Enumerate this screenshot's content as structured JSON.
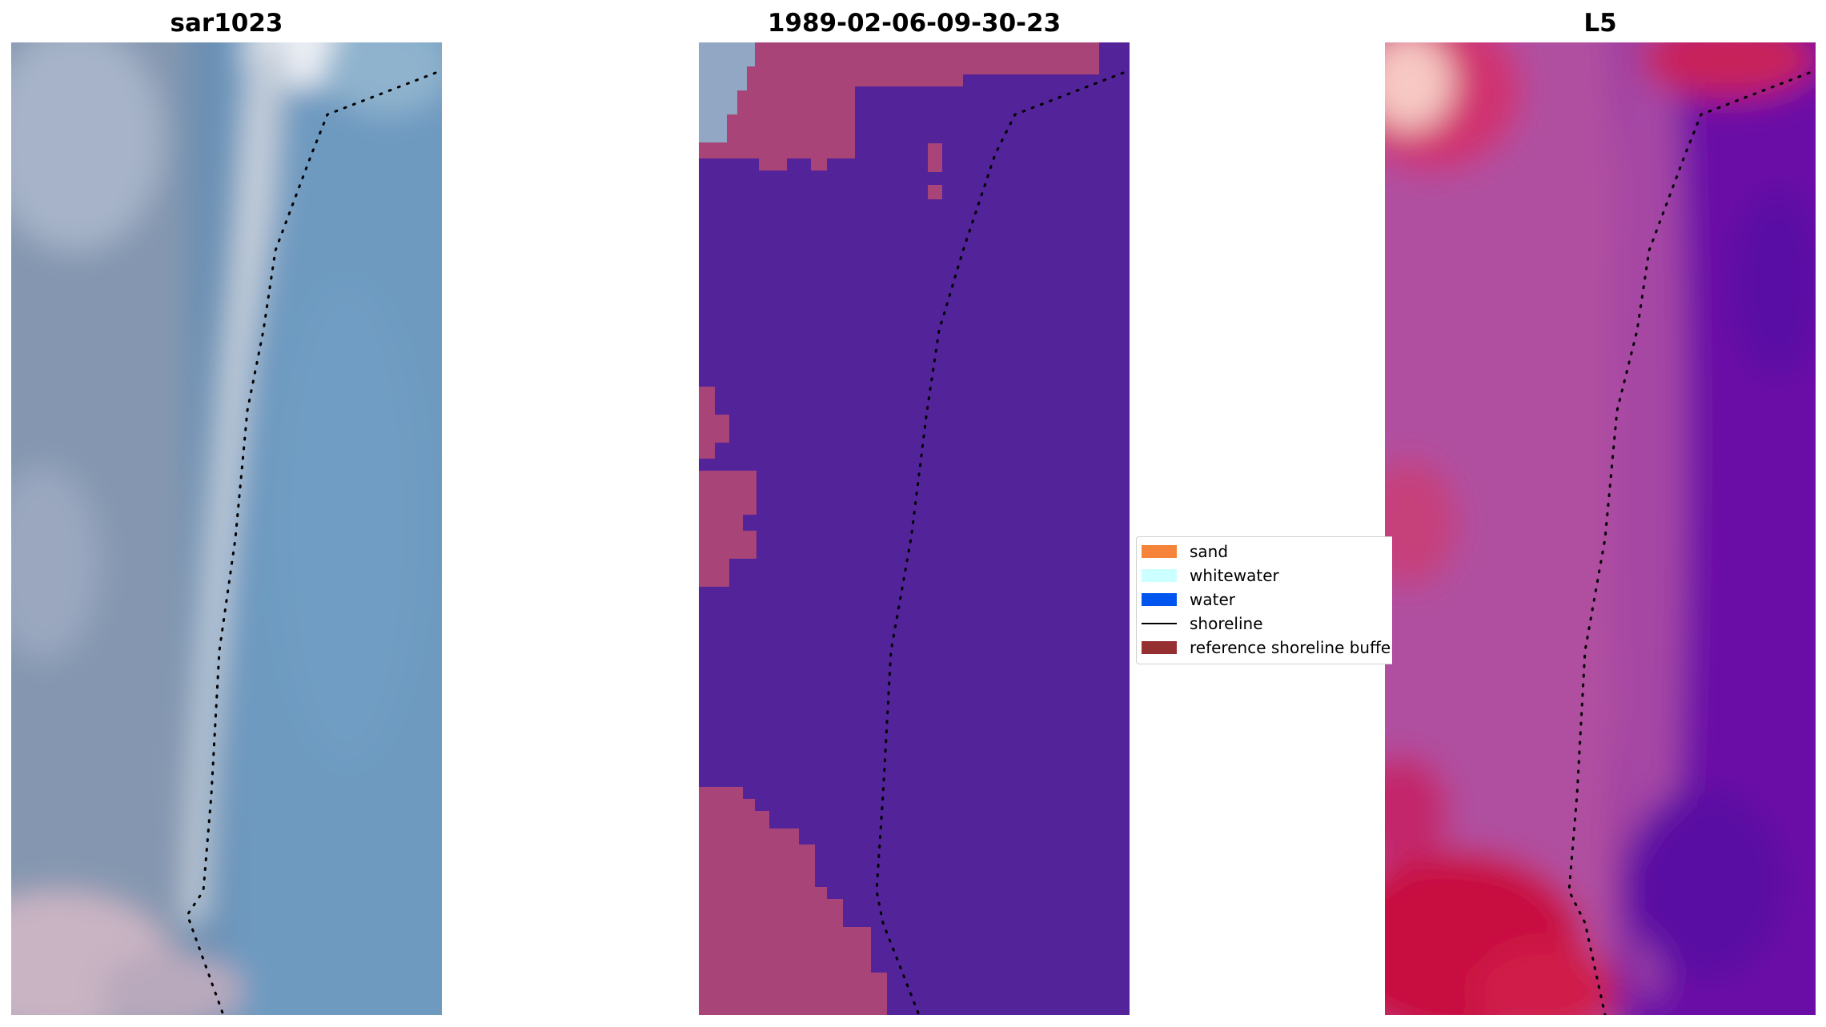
{
  "panels": [
    {
      "title": "sar1023"
    },
    {
      "title": "1989-02-06-09-30-23"
    },
    {
      "title": "L5"
    }
  ],
  "legend": {
    "items": [
      {
        "label": "sand",
        "color": "#f5843a",
        "kind": "patch"
      },
      {
        "label": "whitewater",
        "color": "#ccffff",
        "kind": "patch"
      },
      {
        "label": "water",
        "color": "#0055ef",
        "kind": "patch"
      },
      {
        "label": "shoreline",
        "color": "#000000",
        "kind": "line"
      },
      {
        "label": "reference shoreline buffer",
        "color": "#962f31",
        "kind": "patch"
      }
    ]
  },
  "colors": {
    "classification_water": "#53239a",
    "classification_land": "#a84478",
    "shoreline_dots": "#000000"
  }
}
